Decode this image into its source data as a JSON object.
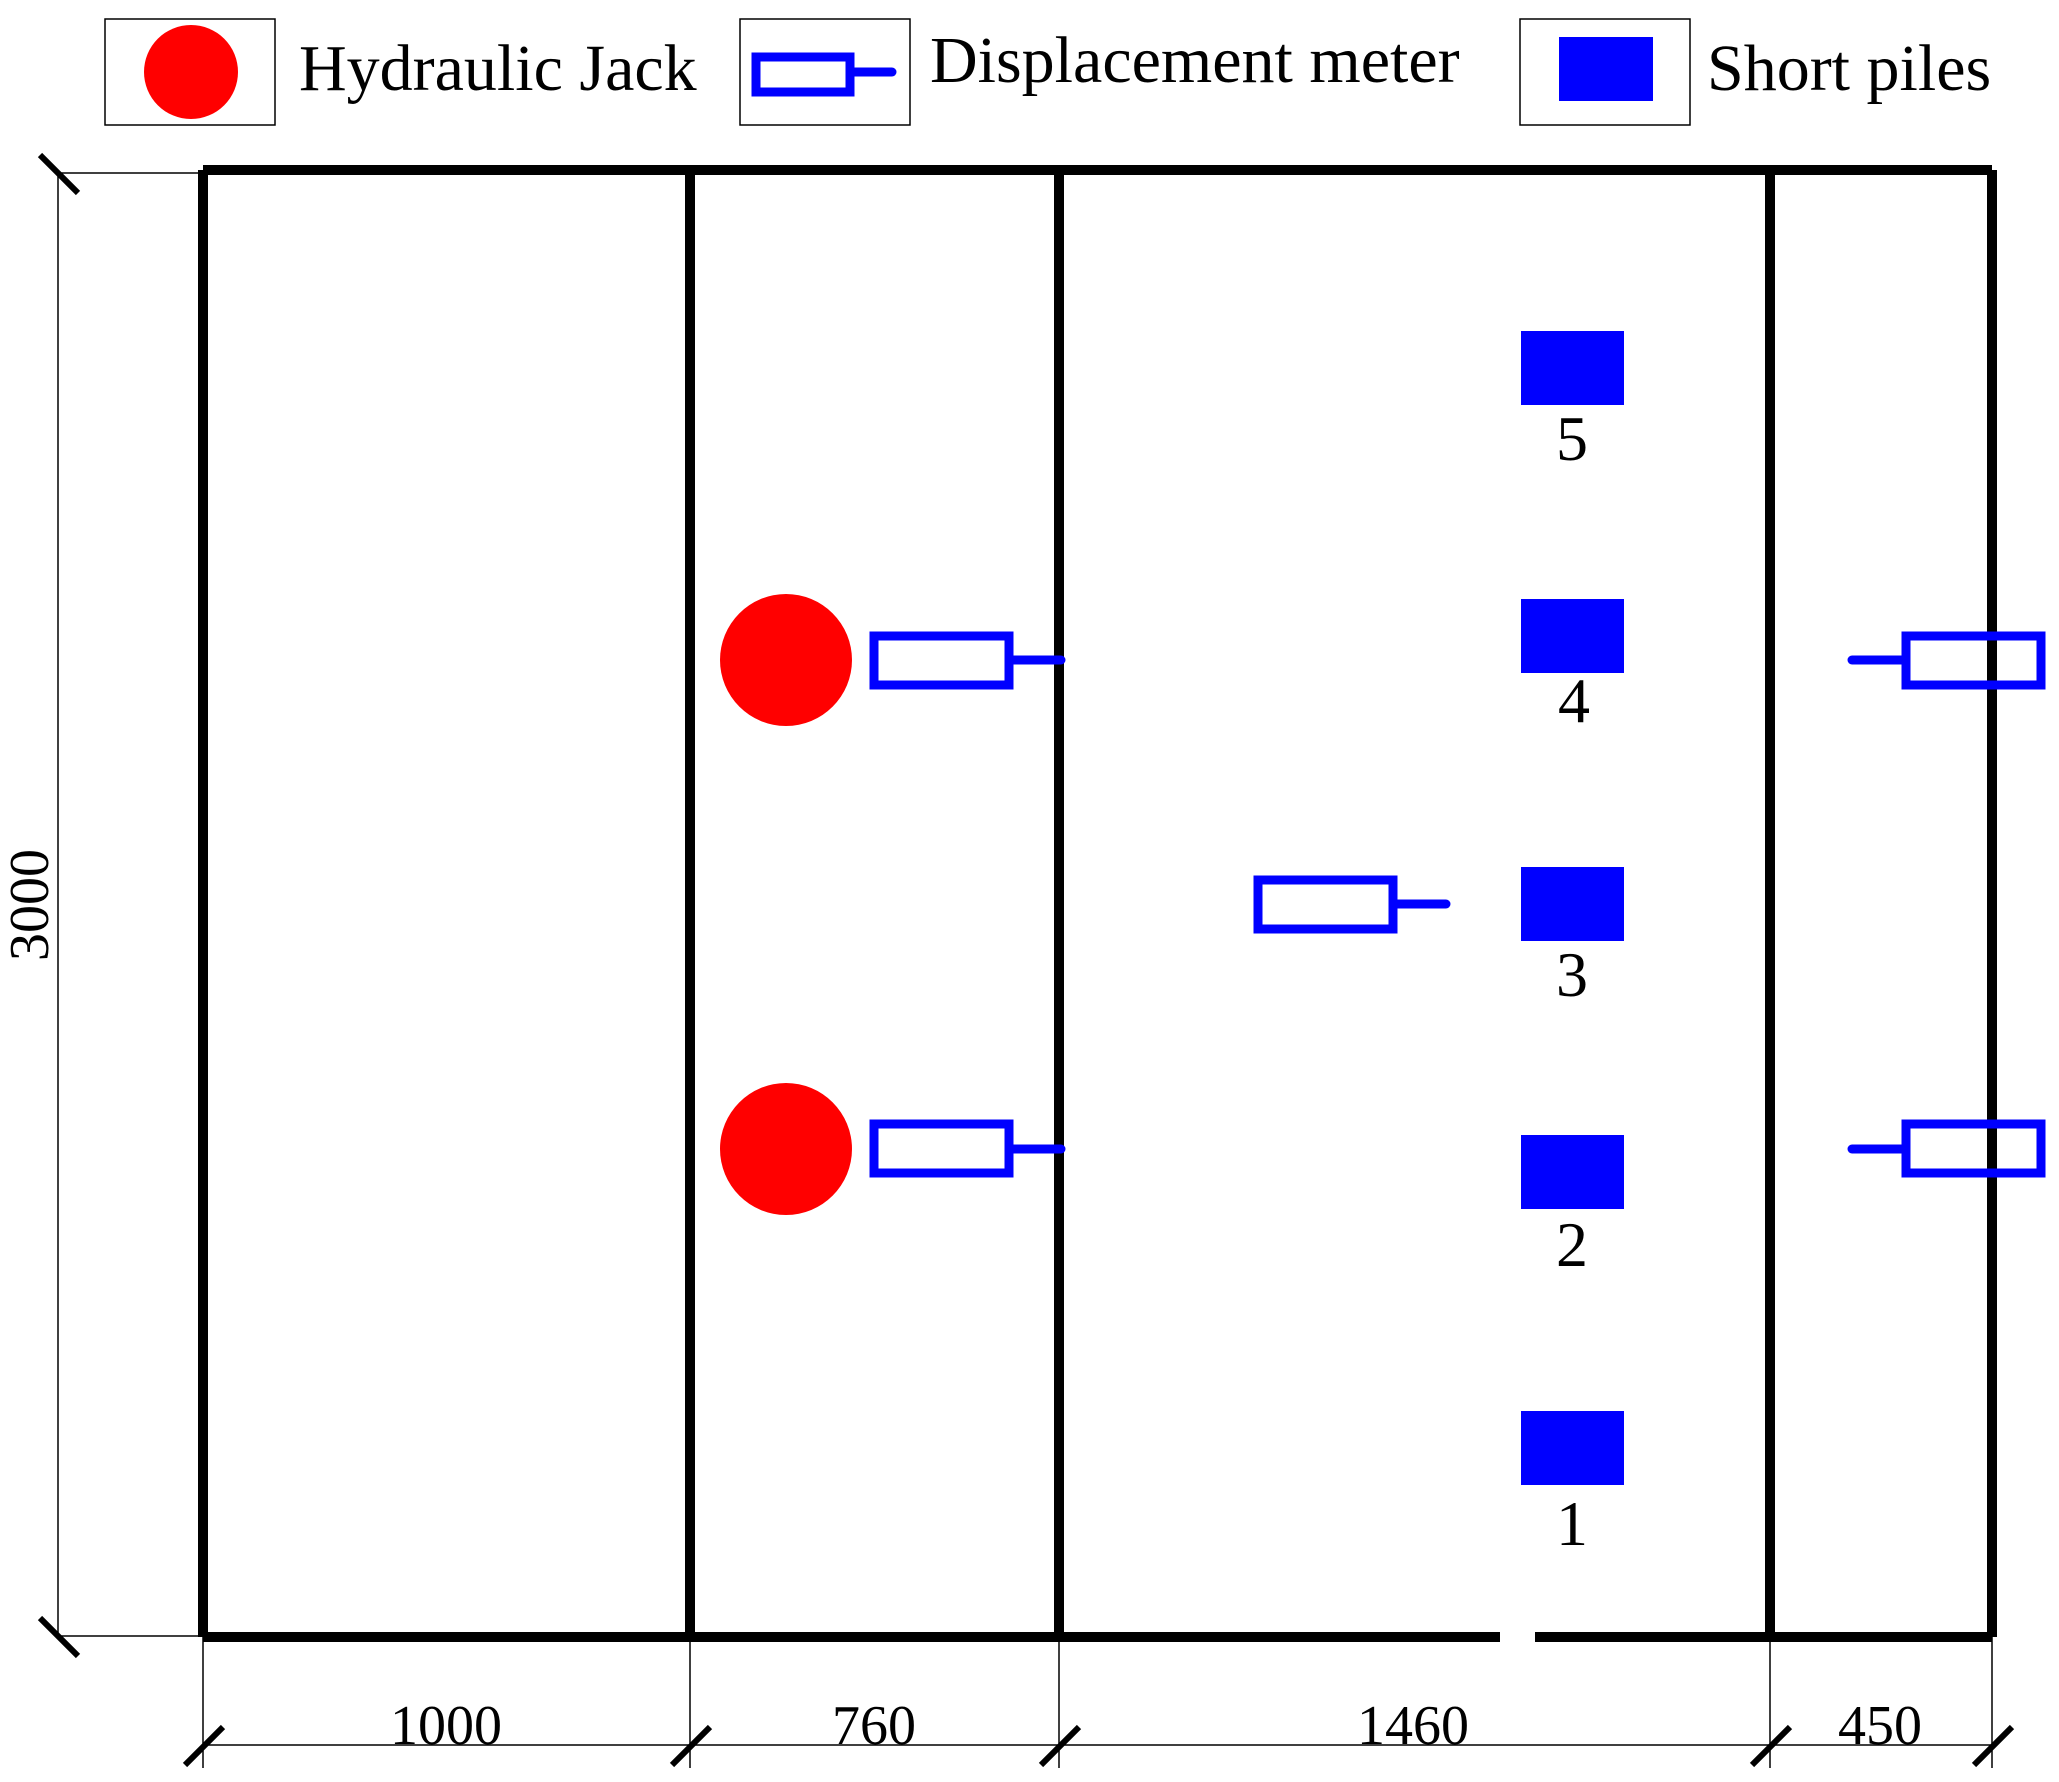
{
  "legend": {
    "items": [
      {
        "label": "Hydraulic Jack",
        "icon": "red-circle-icon",
        "color": "#ff0000"
      },
      {
        "label": "Displacement meter",
        "icon": "displacement-meter-icon",
        "color": "#0000ff"
      },
      {
        "label": "Short piles",
        "icon": "blue-square-icon",
        "color": "#0000ff"
      }
    ]
  },
  "dimensions": {
    "height": "3000",
    "widths": [
      "1000",
      "760",
      "1460",
      "450"
    ]
  },
  "piles": [
    "1",
    "2",
    "3",
    "4",
    "5"
  ],
  "colors": {
    "frame": "#000000",
    "jack": "#ff0000",
    "meter": "#0000ff",
    "pile": "#0000ff"
  }
}
